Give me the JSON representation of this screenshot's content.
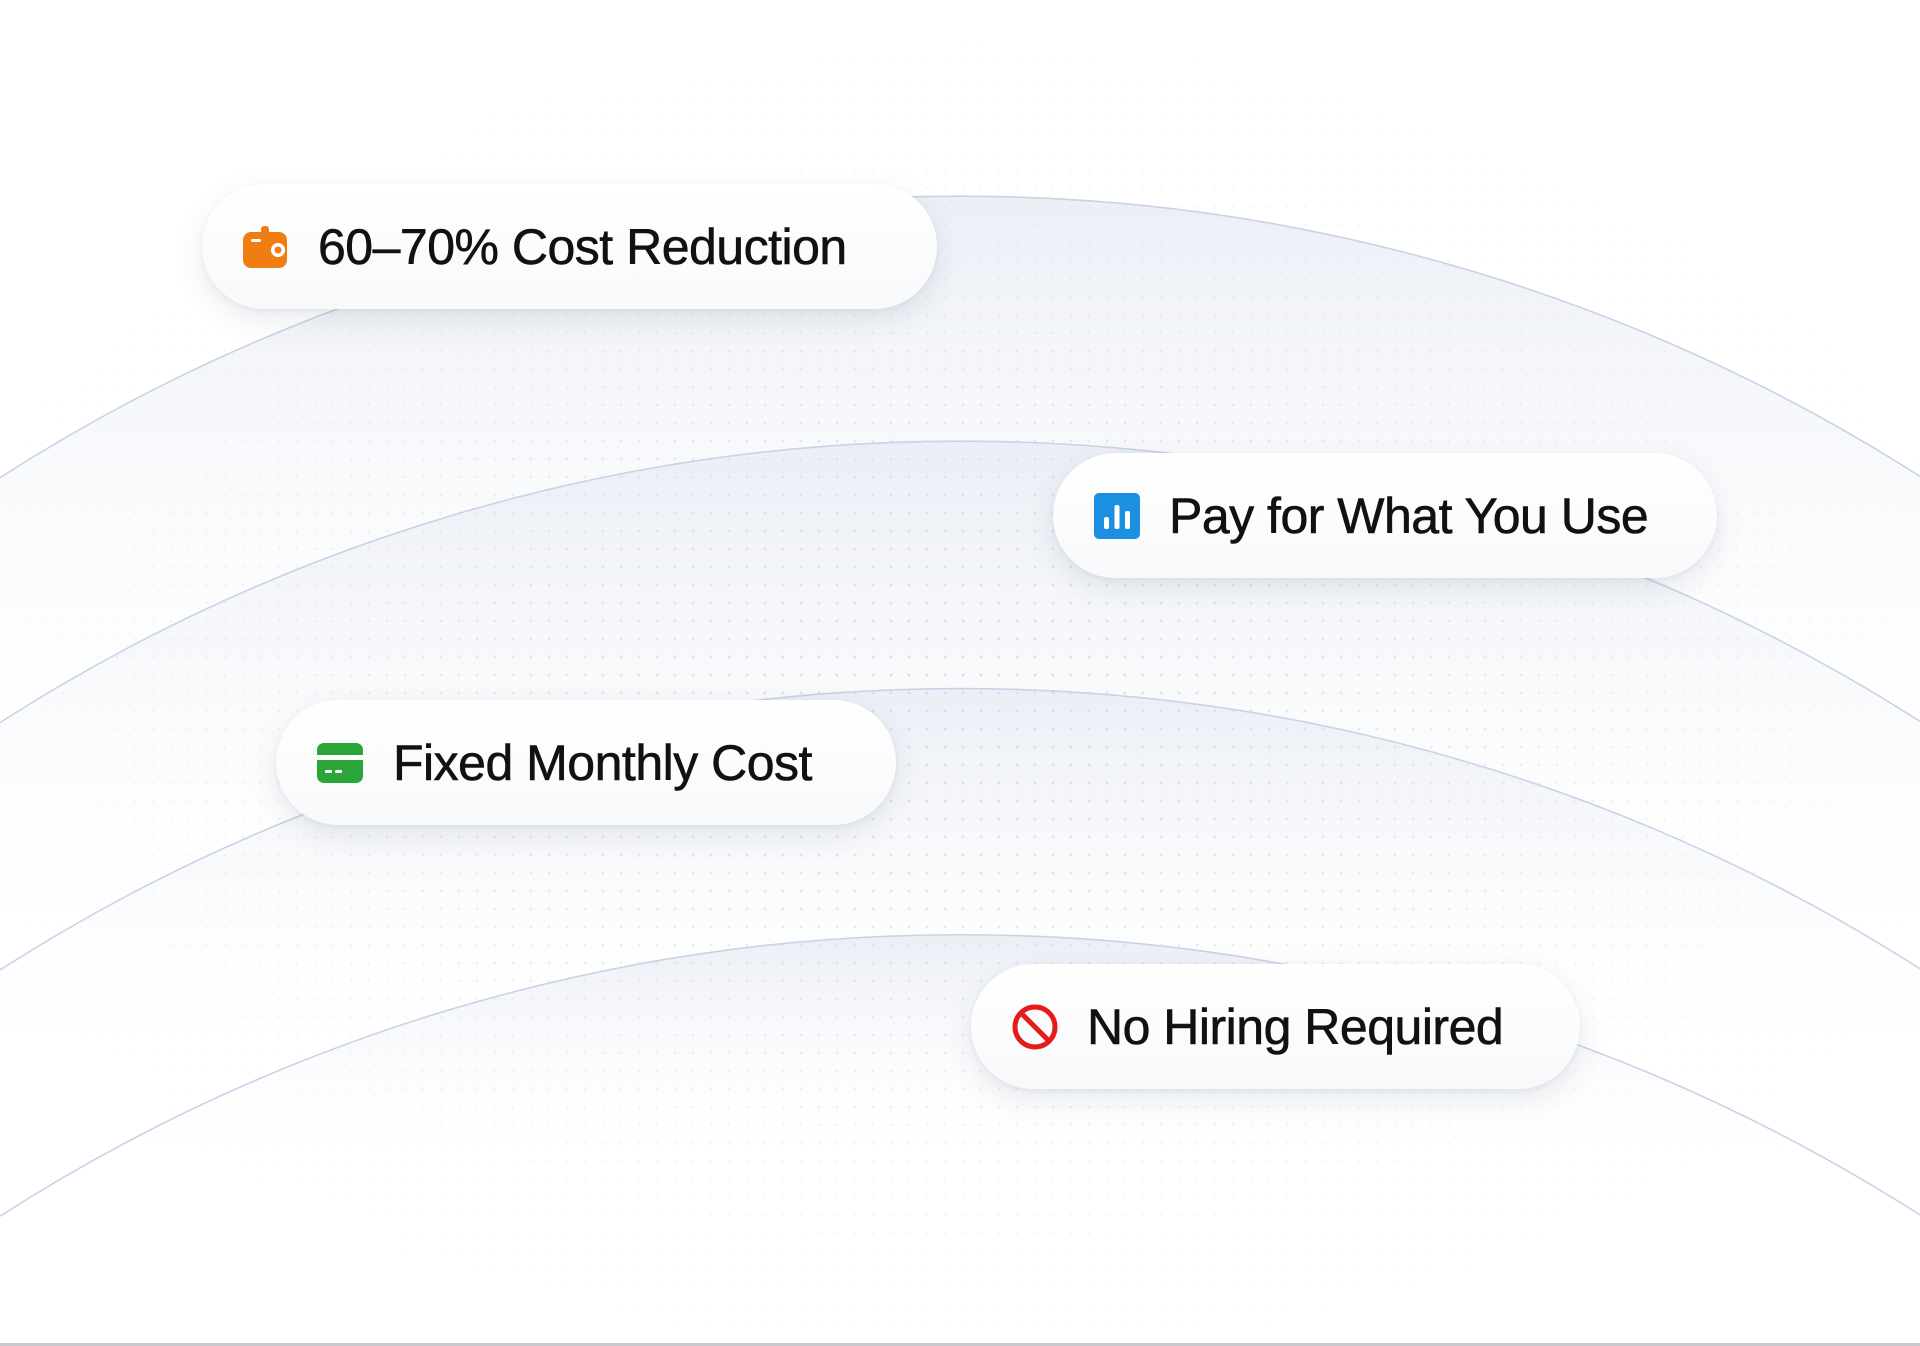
{
  "colors": {
    "wallet": "#f07d12",
    "chart": "#1b8fe0",
    "card": "#2aa53a",
    "ban": "#e51b1b",
    "arc_stroke": "#c9d3e6"
  },
  "pills": [
    {
      "label": "60–70% Cost Reduction",
      "icon": "wallet-icon"
    },
    {
      "label": "Pay for What You Use",
      "icon": "bar-chart-icon"
    },
    {
      "label": "Fixed Monthly Cost",
      "icon": "credit-card-icon"
    },
    {
      "label": "No Hiring Required",
      "icon": "prohibited-icon"
    }
  ]
}
